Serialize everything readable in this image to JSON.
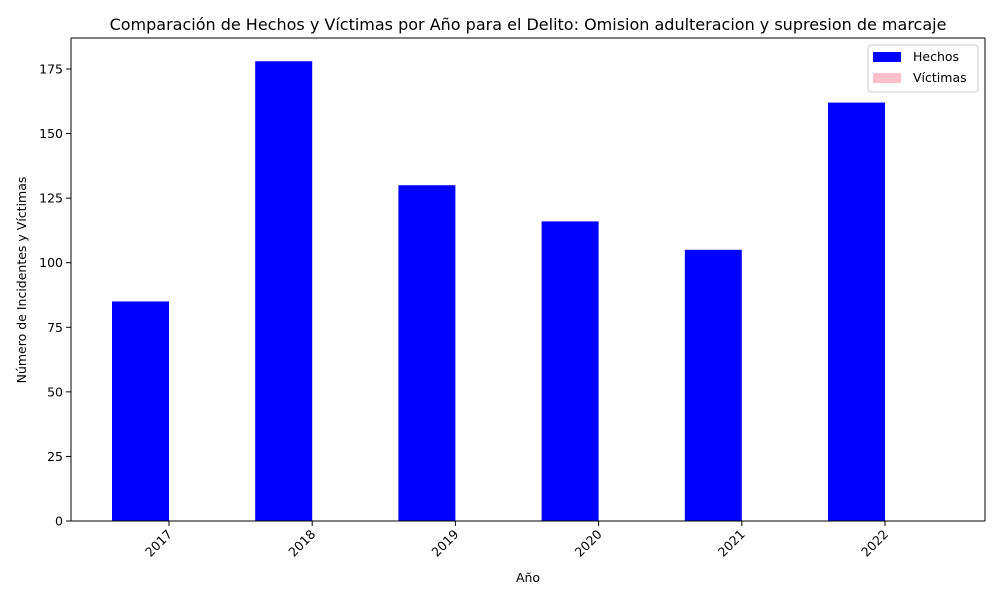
{
  "chart_data": {
    "type": "bar",
    "title": "Comparación de Hechos y Víctimas por Año para el Delito: Omision adulteracion y supresion de marcaje",
    "xlabel": "Año",
    "ylabel": "Número de Incidentes y Víctimas",
    "categories": [
      "2017",
      "2018",
      "2019",
      "2020",
      "2021",
      "2022"
    ],
    "ylim": [
      0,
      187
    ],
    "yticks": [
      0,
      25,
      50,
      75,
      100,
      125,
      150,
      175
    ],
    "series": [
      {
        "name": "Hechos",
        "values": [
          85,
          178,
          130,
          116,
          105,
          162
        ],
        "color": "#0000ff"
      },
      {
        "name": "Víctimas",
        "values": [
          0,
          0,
          0,
          0,
          0,
          0
        ],
        "color": "#ffc0cb"
      }
    ],
    "legend_position": "top-right",
    "grid": false
  }
}
